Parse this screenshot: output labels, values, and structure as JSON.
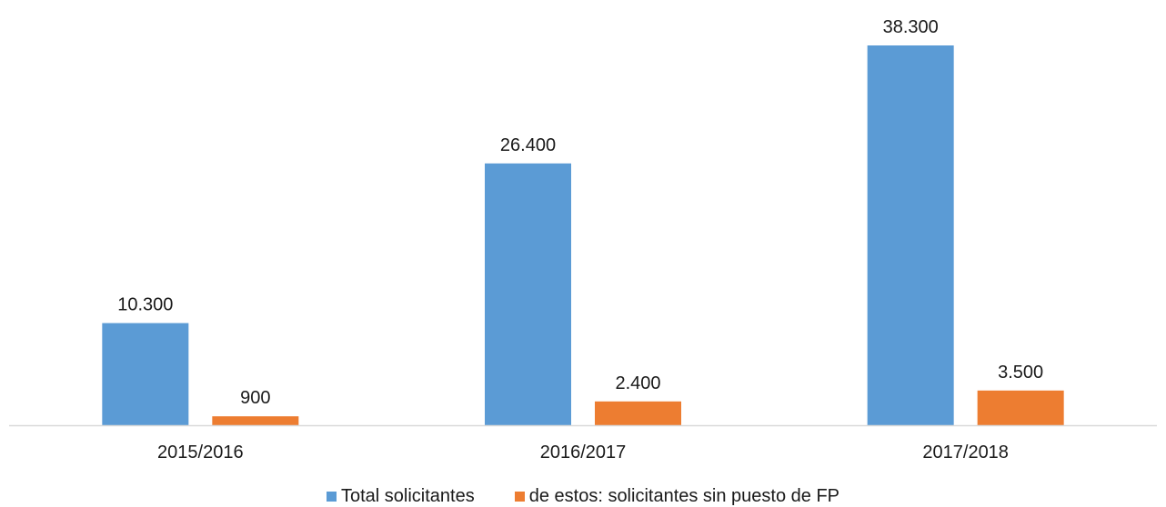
{
  "chart_data": {
    "type": "bar",
    "categories": [
      "2015/2016",
      "2016/2017",
      "2017/2018"
    ],
    "series": [
      {
        "name": "Total solicitantes",
        "values": [
          10300,
          26400,
          38300
        ],
        "labels": [
          "10.300",
          "26.400",
          "38.300"
        ],
        "color": "#5B9BD5"
      },
      {
        "name": "de estos: solicitantes sin puesto de FP",
        "values": [
          900,
          2400,
          3500
        ],
        "labels": [
          "900",
          "2.400",
          "3.500"
        ],
        "color": "#ED7D31"
      }
    ],
    "ylim": [
      0,
      40000
    ],
    "grid": false,
    "legend_position": "bottom"
  }
}
